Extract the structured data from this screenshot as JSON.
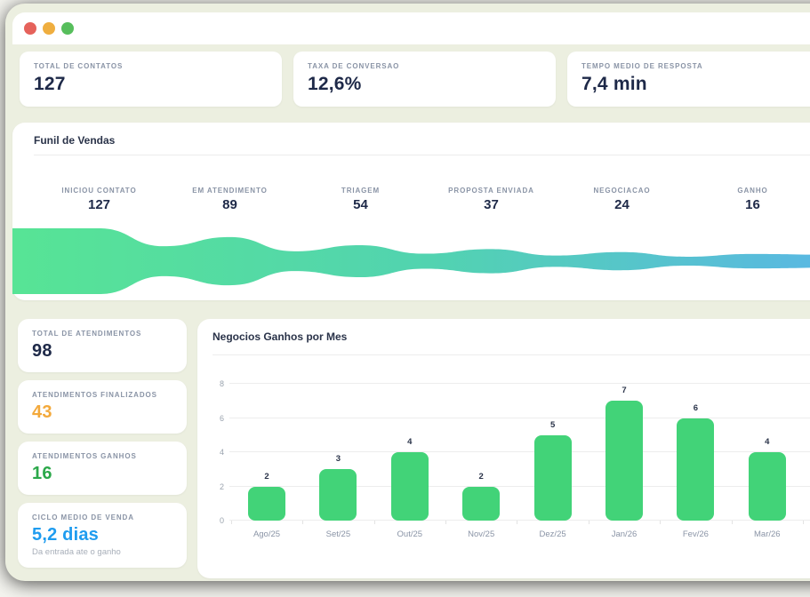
{
  "window": {
    "traffic_lights": [
      {
        "name": "close",
        "color": "#E5625B"
      },
      {
        "name": "minimize",
        "color": "#EFAE3F"
      },
      {
        "name": "zoom",
        "color": "#57BE5C"
      }
    ]
  },
  "colors": {
    "background": "#ECEFE0",
    "card": "#FFFFFF",
    "label_gray": "#8A94A6",
    "value_navy": "#1E2948",
    "accent_orange": "#F3A93B",
    "accent_green": "#2BA84A",
    "accent_blue": "#1F9CEF",
    "bar_green": "#42D378",
    "funnel_gradient_from": "#57E495",
    "funnel_gradient_to": "#5AB6E6"
  },
  "top_stats": [
    {
      "label": "TOTAL DE CONTATOS",
      "value": "127"
    },
    {
      "label": "TAXA DE CONVERSAO",
      "value": "12,6%"
    },
    {
      "label": "TEMPO MEDIO DE RESPOSTA",
      "value": "7,4 min"
    }
  ],
  "funnel": {
    "title": "Funil de Vendas",
    "stages": [
      {
        "label": "INICIOU CONTATO",
        "value": 127
      },
      {
        "label": "EM ATENDIMENTO",
        "value": 89
      },
      {
        "label": "TRIAGEM",
        "value": 54
      },
      {
        "label": "PROPOSTA ENVIADA",
        "value": 37
      },
      {
        "label": "NEGOCIACAO",
        "value": 24
      },
      {
        "label": "GANHO",
        "value": 16
      }
    ]
  },
  "side_stats": [
    {
      "label": "TOTAL DE ATENDIMENTOS",
      "value": "98",
      "color": "#1E2948",
      "subtitle": ""
    },
    {
      "label": "ATENDIMENTOS FINALIZADOS",
      "value": "43",
      "color": "#F3A93B",
      "subtitle": ""
    },
    {
      "label": "ATENDIMENTOS GANHOS",
      "value": "16",
      "color": "#2BA84A",
      "subtitle": ""
    },
    {
      "label": "CICLO MEDIO DE VENDA",
      "value": "5,2 dias",
      "color": "#1F9CEF",
      "subtitle": "Da entrada ate o ganho"
    }
  ],
  "chart_data": [
    {
      "type": "bar",
      "title": "Negocios Ganhos por Mes",
      "categories": [
        "Ago/25",
        "Set/25",
        "Out/25",
        "Nov/25",
        "Dez/25",
        "Jan/26",
        "Fev/26",
        "Mar/26"
      ],
      "values": [
        2,
        3,
        4,
        2,
        5,
        7,
        6,
        4
      ],
      "xlabel": "",
      "ylabel": "",
      "ylim": [
        0,
        8
      ],
      "yticks": [
        0,
        2,
        4,
        6,
        8
      ],
      "grid": true,
      "legend": "none",
      "bar_color": "#42D378"
    },
    {
      "type": "area",
      "title": "Funil de Vendas",
      "categories": [
        "INICIOU CONTATO",
        "EM ATENDIMENTO",
        "TRIAGEM",
        "PROPOSTA ENVIADA",
        "NEGOCIACAO",
        "GANHO"
      ],
      "values": [
        127,
        89,
        54,
        37,
        24,
        16
      ],
      "gradient": [
        "#57E495",
        "#5AB6E6"
      ],
      "legend": "none"
    }
  ]
}
